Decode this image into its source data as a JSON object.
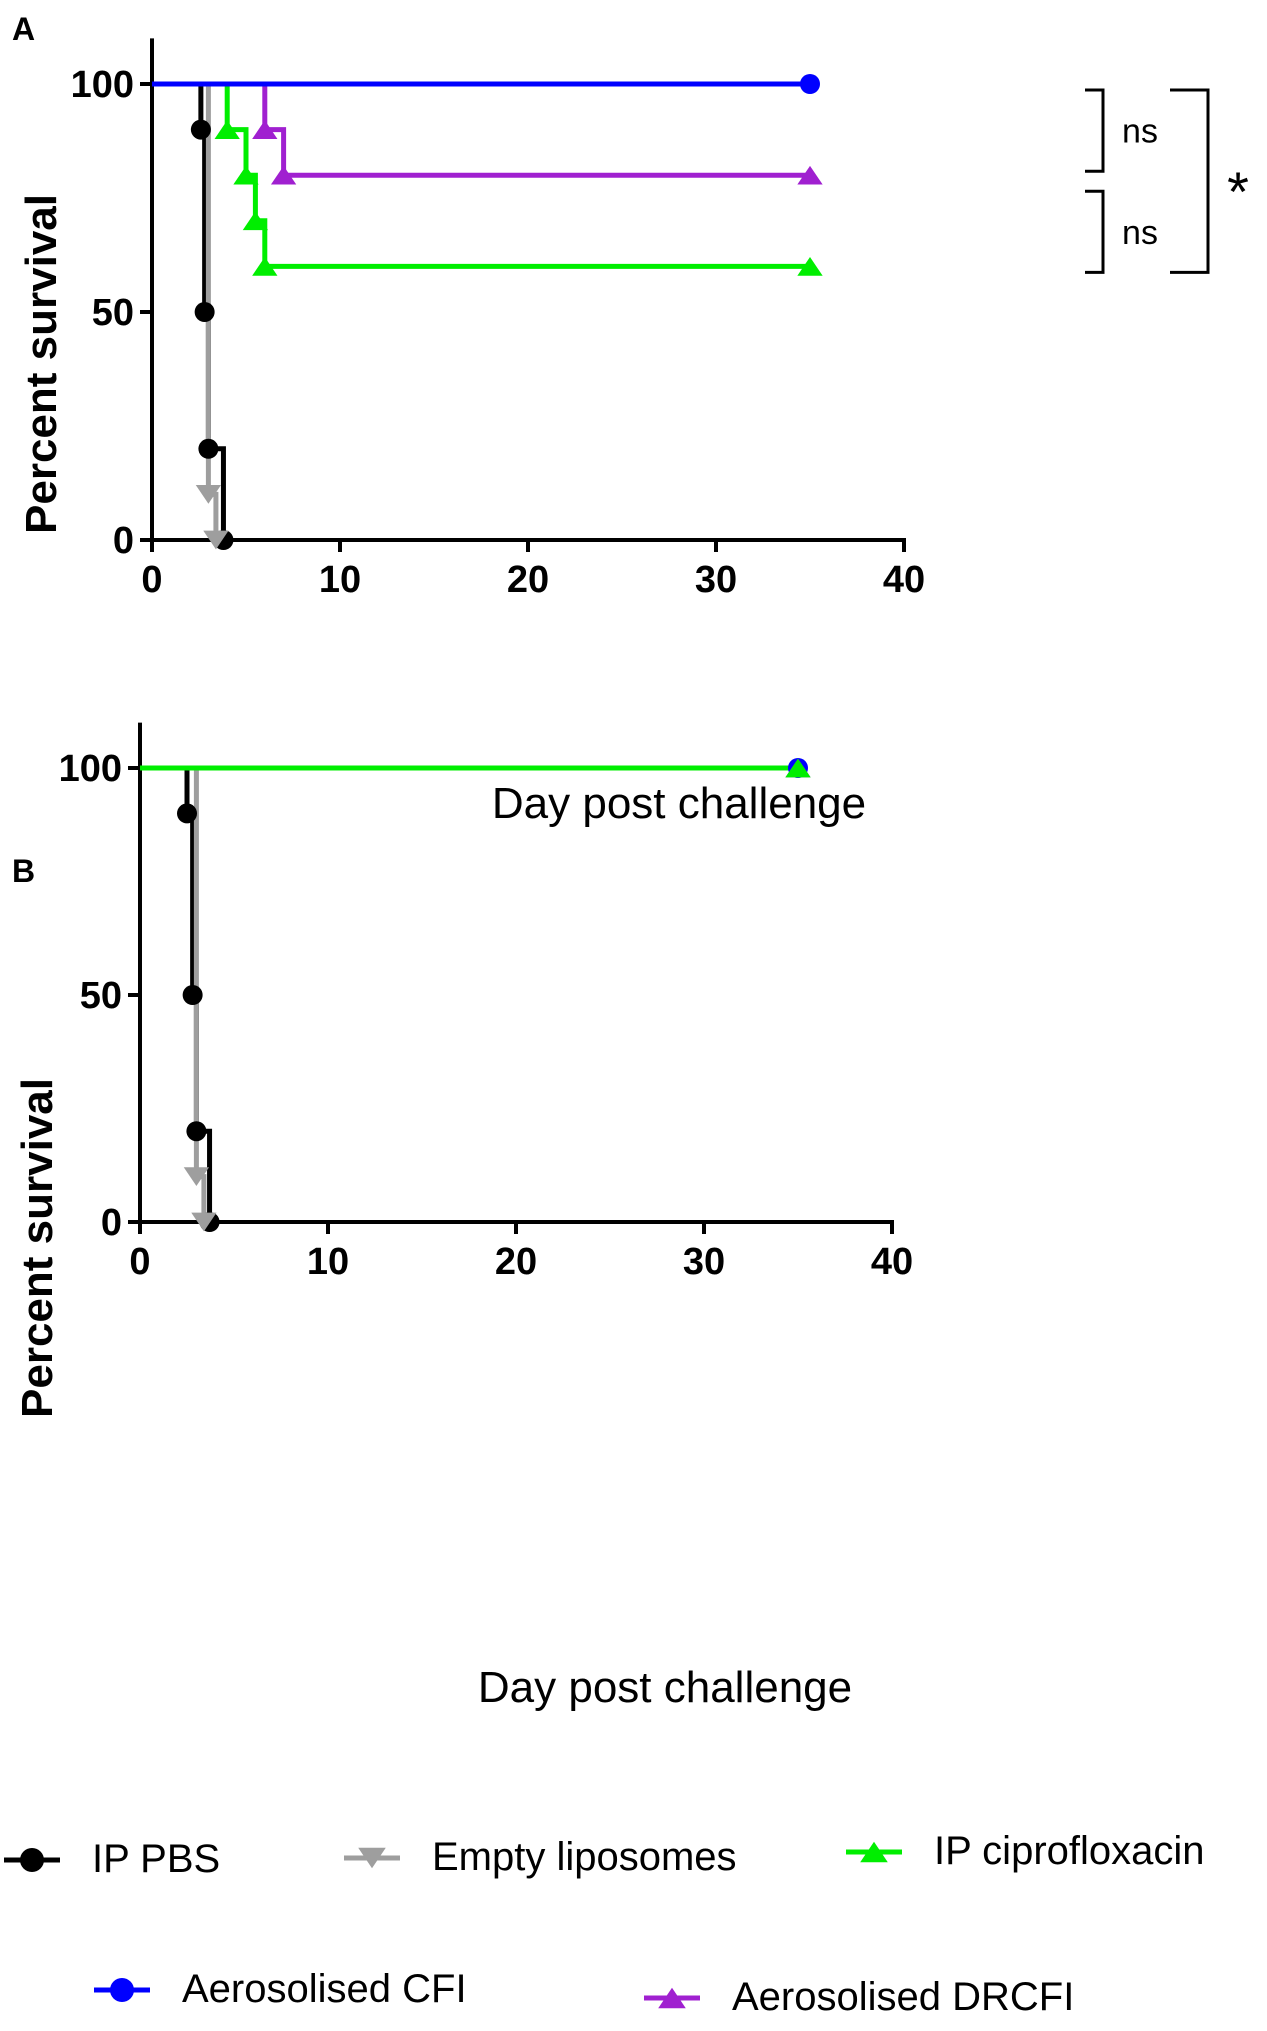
{
  "chart_data": [
    {
      "panel_label": "A",
      "type": "line",
      "subtype": "kaplan-meier survival",
      "xlabel": "Day post challenge",
      "ylabel": "Percent survival",
      "xlim": [
        0,
        40
      ],
      "ylim": [
        0,
        110
      ],
      "xticks": [
        0,
        10,
        20,
        30,
        40
      ],
      "yticks": [
        0,
        50,
        100
      ],
      "series": [
        {
          "name": "IP PBS",
          "color": "#000000",
          "marker": "circle",
          "x": [
            0,
            2.6,
            2.6,
            2.8,
            2.8,
            3.0,
            3.0,
            3.8,
            3.8
          ],
          "y": [
            100,
            100,
            90,
            90,
            50,
            50,
            20,
            20,
            0
          ],
          "marker_points": [
            [
              2.6,
              90
            ],
            [
              2.8,
              50
            ],
            [
              3.0,
              20
            ],
            [
              3.8,
              0
            ]
          ]
        },
        {
          "name": "Empty liposomes",
          "color": "#9e9e9e",
          "marker": "triangle-down",
          "x": [
            0,
            3.0,
            3.0,
            3.4,
            3.4
          ],
          "y": [
            100,
            100,
            10,
            10,
            0
          ],
          "marker_points": [
            [
              3.0,
              10
            ],
            [
              3.4,
              0
            ]
          ]
        },
        {
          "name": "IP ciprofloxacin",
          "color": "#00ee00",
          "marker": "triangle-up",
          "x": [
            0,
            4.0,
            4.0,
            5.0,
            5.0,
            5.5,
            5.5,
            6.0,
            6.0,
            35
          ],
          "y": [
            100,
            100,
            90,
            90,
            80,
            80,
            70,
            70,
            60,
            60
          ],
          "marker_points": [
            [
              4.0,
              90
            ],
            [
              5.0,
              80
            ],
            [
              5.5,
              70
            ],
            [
              6.0,
              60
            ],
            [
              35,
              60
            ]
          ]
        },
        {
          "name": "Aerosolised DRCFI",
          "color": "#a020d0",
          "marker": "triangle-up",
          "x": [
            0,
            6.0,
            6.0,
            7.0,
            7.0,
            35
          ],
          "y": [
            100,
            100,
            90,
            90,
            80,
            80
          ],
          "marker_points": [
            [
              6.0,
              90
            ],
            [
              7.0,
              80
            ],
            [
              35,
              80
            ]
          ]
        },
        {
          "name": "Aerosolised CFI",
          "color": "#0000ff",
          "marker": "circle",
          "x": [
            0,
            35
          ],
          "y": [
            100,
            100
          ],
          "marker_points": [
            [
              35,
              100
            ]
          ]
        }
      ],
      "annotations": [
        {
          "text": "ns",
          "between": [
            100,
            80
          ]
        },
        {
          "text": "ns",
          "between": [
            80,
            60
          ]
        },
        {
          "text": "*",
          "between": [
            100,
            60
          ]
        }
      ]
    },
    {
      "panel_label": "B",
      "type": "line",
      "subtype": "kaplan-meier survival",
      "xlabel": "Day post challenge",
      "ylabel": "Percent survival",
      "xlim": [
        0,
        40
      ],
      "ylim": [
        0,
        110
      ],
      "xticks": [
        0,
        10,
        20,
        30,
        40
      ],
      "yticks": [
        0,
        50,
        100
      ],
      "series": [
        {
          "name": "IP PBS",
          "color": "#000000",
          "marker": "circle",
          "x": [
            0,
            2.5,
            2.5,
            2.8,
            2.8,
            3.0,
            3.0,
            3.7,
            3.7
          ],
          "y": [
            100,
            100,
            90,
            90,
            50,
            50,
            20,
            20,
            0
          ],
          "marker_points": [
            [
              2.5,
              90
            ],
            [
              2.8,
              50
            ],
            [
              3.0,
              20
            ],
            [
              3.7,
              0
            ]
          ]
        },
        {
          "name": "Empty liposomes",
          "color": "#9e9e9e",
          "marker": "triangle-down",
          "x": [
            0,
            3.0,
            3.0,
            3.4,
            3.4
          ],
          "y": [
            100,
            100,
            10,
            10,
            0
          ],
          "marker_points": [
            [
              3.0,
              10
            ],
            [
              3.4,
              0
            ]
          ]
        },
        {
          "name": "Aerosolised CFI",
          "color": "#0000ff",
          "marker": "circle",
          "x": [
            0,
            35
          ],
          "y": [
            100,
            100
          ],
          "marker_points": [
            [
              35,
              100
            ]
          ]
        },
        {
          "name": "Aerosolised DRCFI",
          "color": "#a020d0",
          "marker": "triangle-up",
          "x": [
            0,
            35
          ],
          "y": [
            100,
            100
          ],
          "marker_points": [
            [
              35,
              100
            ]
          ]
        },
        {
          "name": "IP ciprofloxacin",
          "color": "#00ee00",
          "marker": "triangle-up",
          "x": [
            0,
            35
          ],
          "y": [
            100,
            100
          ],
          "marker_points": [
            [
              35,
              100
            ]
          ]
        }
      ]
    }
  ],
  "legend": {
    "position": "bottom",
    "items": [
      {
        "name": "IP PBS",
        "color": "#000000",
        "marker": "circle"
      },
      {
        "name": "Empty liposomes",
        "color": "#9e9e9e",
        "marker": "triangle-down"
      },
      {
        "name": "IP ciprofloxacin",
        "color": "#00ee00",
        "marker": "triangle-up"
      },
      {
        "name": "Aerosolised CFI",
        "color": "#0000ff",
        "marker": "circle"
      },
      {
        "name": "Aerosolised DRCFI",
        "color": "#a020d0",
        "marker": "triangle-up"
      }
    ]
  }
}
